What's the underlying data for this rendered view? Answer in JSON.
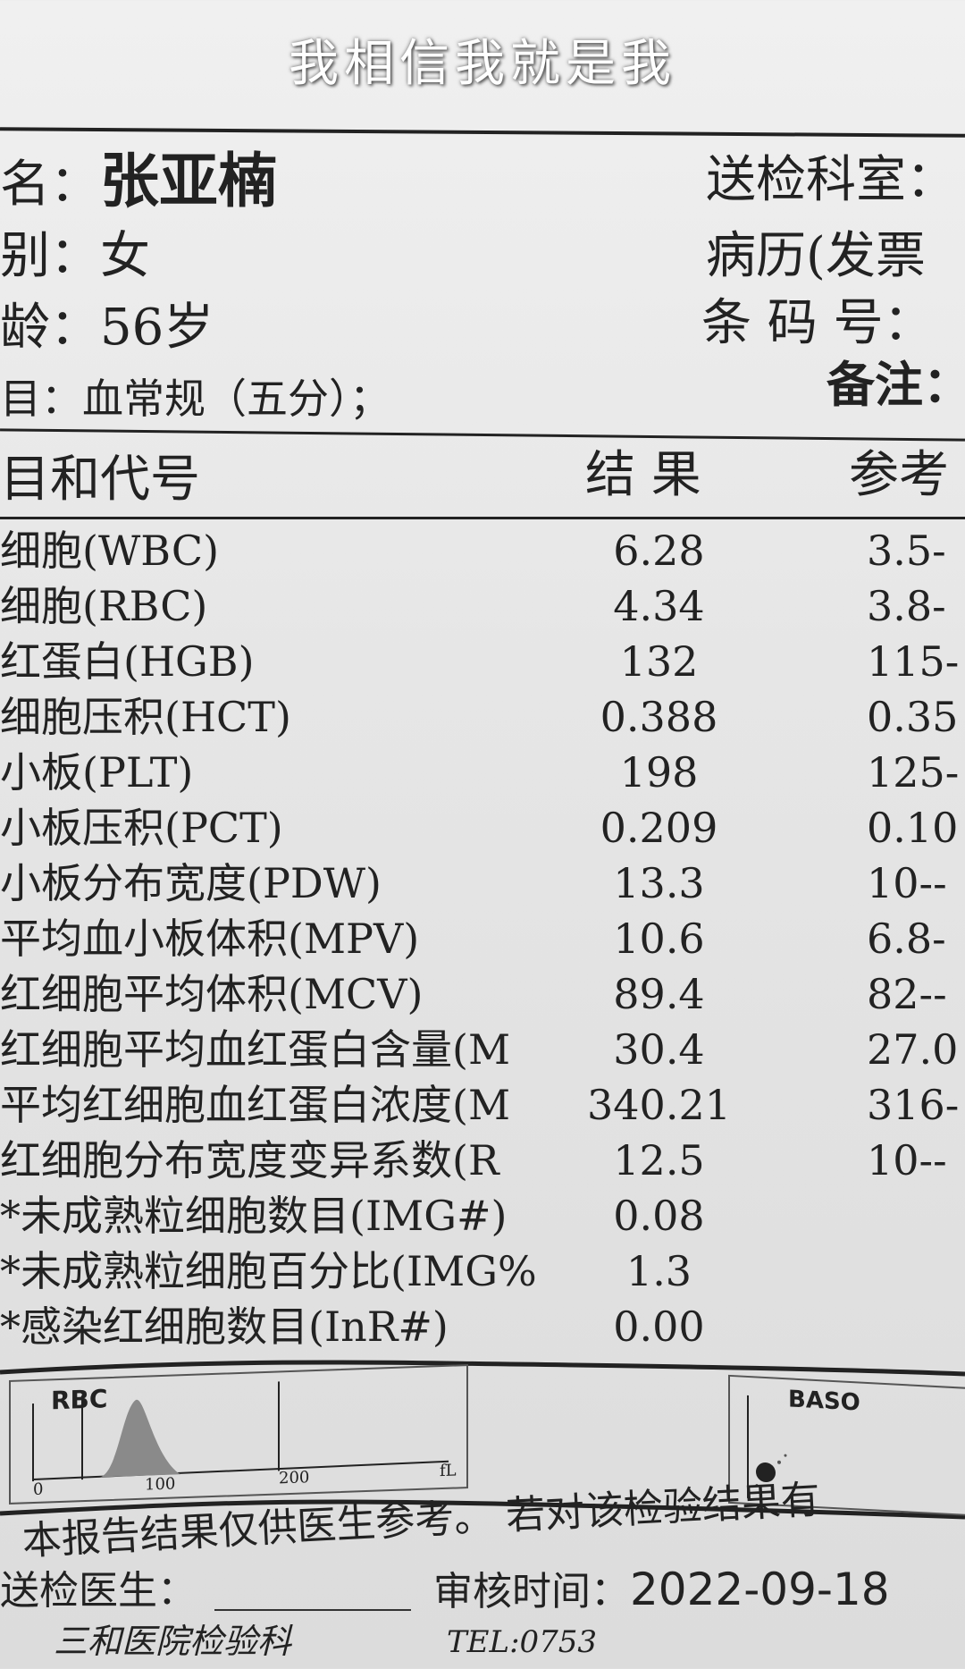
{
  "patient": {
    "name_label": "名：",
    "name": "张亚楠",
    "sex_label": "别：",
    "sex": "女",
    "age_label": "龄：",
    "age": "56岁",
    "item_label": "目：",
    "item": "血常规（五分）；",
    "dept_label": "送检科室：",
    "record_label": "病历(发票",
    "barcode_label": "条 码 号：",
    "note_label": "备注："
  },
  "table": {
    "headers": {
      "item": "目和代号",
      "result": "结 果",
      "reference": "参考"
    },
    "rows": [
      {
        "name": "细胞(WBC)",
        "result": "6.28",
        "ref": "3.5-"
      },
      {
        "name": "细胞(RBC)",
        "result": "4.34",
        "ref": "3.8-"
      },
      {
        "name": "红蛋白(HGB)",
        "result": "132",
        "ref": "115-"
      },
      {
        "name": "细胞压积(HCT)",
        "result": "0.388",
        "ref": "0.35"
      },
      {
        "name": "小板(PLT)",
        "result": "198",
        "ref": "125-"
      },
      {
        "name": "小板压积(PCT)",
        "result": "0.209",
        "ref": "0.10"
      },
      {
        "name": "小板分布宽度(PDW)",
        "result": "13.3",
        "ref": "10--"
      },
      {
        "name": "平均血小板体积(MPV)",
        "result": "10.6",
        "ref": "6.8-"
      },
      {
        "name": "红细胞平均体积(MCV)",
        "result": "89.4",
        "ref": "82--"
      },
      {
        "name": "红细胞平均血红蛋白含量(M",
        "result": "30.4",
        "ref": "27.0"
      },
      {
        "name": "平均红细胞血红蛋白浓度(M",
        "result": "340.21",
        "ref": "316-"
      },
      {
        "name": "红细胞分布宽度变异系数(R",
        "result": "12.5",
        "ref": "10--"
      },
      {
        "name": "*未成熟粒细胞数目(IMG#)",
        "result": "0.08",
        "ref": ""
      },
      {
        "name": "*未成熟粒细胞百分比(IMG%",
        "result": "1.3",
        "ref": ""
      },
      {
        "name": "*感染红细胞数目(InR#)",
        "result": "0.00",
        "ref": ""
      }
    ]
  },
  "charts": {
    "rbc": {
      "title": "RBC",
      "ticks": [
        "0",
        "100",
        "200",
        "fL"
      ]
    },
    "baso": {
      "title": "BASO"
    }
  },
  "footer": {
    "disclaimer": "本报告结果仅供医生参考。 若对该检验结果有",
    "doctor_label": "送检医生：",
    "review_label": "审核时间：",
    "review_date": "2022-09-18",
    "lab": "三和医院检验科",
    "tel": "TEL:0753"
  },
  "overlay": {
    "subtitle": "我相信我就是我"
  }
}
